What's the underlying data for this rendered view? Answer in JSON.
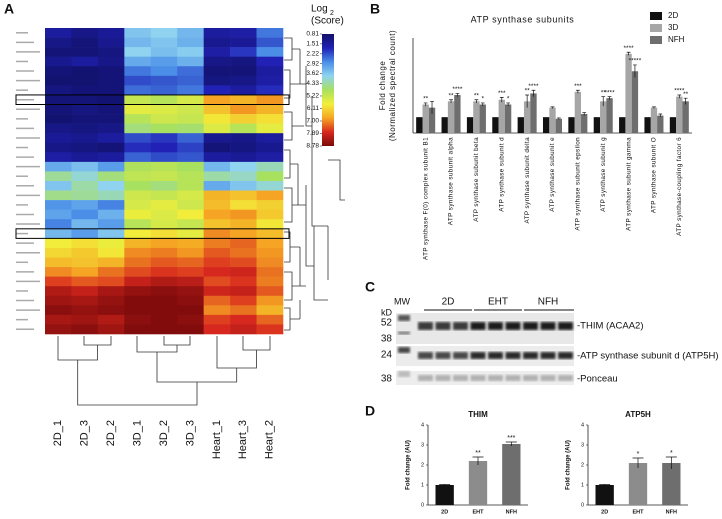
{
  "panels": [
    "A",
    "B",
    "C",
    "D"
  ],
  "blot": {
    "mw": "MW",
    "kd": "kD",
    "groups": [
      "2D",
      "EHT",
      "NFH"
    ],
    "markers": [
      "52",
      "38",
      "24",
      "38"
    ],
    "rows": [
      "-THIM (ACAA2)",
      "-ATP synthase subunit d (ATP5H)",
      "-Ponceau"
    ]
  },
  "chart_data": [
    {
      "type": "heatmap",
      "x": [
        "2D_1",
        "2D_3",
        "2D_2",
        "3D_1",
        "3D_2",
        "3D_3",
        "Heart_1",
        "Heart_3",
        "Heart_2"
      ],
      "legend_title": [
        "Log",
        "2",
        "(Score)"
      ],
      "clim": [
        0.81,
        8.78
      ],
      "colors": [
        "#11116a",
        "#2121b5",
        "#4a8ee8",
        "#8fd3f0",
        "#a8e060",
        "#f2ee3a",
        "#f5a623",
        "#d8281e",
        "#7a0a0a"
      ],
      "colorbar_ticks": [
        0.81,
        1.51,
        2.22,
        2.92,
        3.62,
        4.33,
        5.22,
        6.11,
        {
          "value": 7,
          "label": "7.00"
        },
        7.89,
        8.78
      ],
      "values": [
        [
          1.5,
          1.2,
          1.4,
          3.6,
          3.8,
          3.4,
          1.5,
          1.6,
          2.6
        ],
        [
          1.2,
          1.0,
          1.3,
          3.4,
          3.6,
          3.3,
          1.3,
          1.4,
          2.3
        ],
        [
          1.0,
          1.0,
          1.1,
          3.8,
          3.5,
          3.7,
          1.6,
          2.0,
          2.8
        ],
        [
          1.3,
          1.5,
          1.2,
          3.2,
          3.0,
          3.3,
          1.2,
          1.1,
          1.8
        ],
        [
          1.0,
          0.9,
          1.0,
          2.6,
          2.8,
          2.5,
          1.0,
          1.0,
          1.5
        ],
        [
          0.9,
          0.9,
          1.0,
          2.2,
          2.3,
          2.4,
          1.1,
          1.2,
          1.6
        ],
        [
          1.1,
          1.0,
          1.0,
          2.5,
          2.4,
          2.6,
          1.8,
          1.5,
          1.9
        ],
        [
          1.0,
          1.0,
          0.9,
          5.2,
          5.0,
          5.4,
          6.8,
          6.6,
          6.9
        ],
        [
          1.0,
          1.1,
          1.0,
          5.6,
          5.5,
          5.3,
          6.4,
          6.9,
          6.6
        ],
        [
          0.9,
          1.0,
          1.0,
          5.0,
          5.3,
          5.2,
          5.9,
          6.2,
          6.0
        ],
        [
          1.2,
          1.1,
          1.2,
          4.6,
          4.8,
          4.7,
          5.5,
          5.0,
          5.6
        ],
        [
          1.4,
          1.3,
          1.5,
          2.2,
          2.0,
          2.4,
          1.3,
          1.2,
          1.5
        ],
        [
          1.2,
          1.1,
          1.0,
          1.9,
          1.8,
          2.1,
          1.0,
          1.1,
          1.3
        ],
        [
          1.6,
          1.4,
          1.5,
          2.4,
          2.2,
          2.3,
          1.5,
          1.4,
          1.6
        ],
        [
          3.2,
          3.5,
          3.0,
          4.9,
          5.0,
          4.8,
          3.4,
          3.8,
          4.2
        ],
        [
          4.4,
          4.0,
          4.6,
          5.1,
          5.2,
          5.0,
          4.3,
          4.1,
          4.8
        ],
        [
          3.6,
          4.3,
          3.8,
          4.8,
          4.6,
          5.0,
          3.2,
          3.6,
          4.0
        ],
        [
          4.5,
          4.4,
          4.2,
          5.3,
          5.2,
          5.4,
          6.6,
          6.4,
          6.8
        ],
        [
          2.9,
          3.1,
          2.7,
          5.4,
          5.6,
          5.3,
          6.5,
          6.0,
          6.2
        ],
        [
          3.1,
          2.8,
          3.3,
          5.7,
          5.5,
          5.8,
          6.8,
          6.9,
          6.3
        ],
        [
          2.7,
          3.4,
          3.0,
          5.0,
          5.4,
          5.2,
          6.4,
          6.6,
          5.9
        ],
        [
          3.4,
          3.0,
          3.6,
          5.8,
          6.0,
          5.6,
          7.0,
          6.8,
          6.5
        ],
        [
          5.8,
          6.0,
          5.7,
          6.6,
          6.8,
          6.7,
          7.1,
          7.3,
          6.8
        ],
        [
          6.1,
          6.3,
          5.9,
          7.0,
          7.1,
          6.9,
          7.4,
          7.2,
          6.9
        ],
        [
          6.5,
          6.4,
          6.6,
          7.2,
          7.4,
          7.3,
          7.6,
          7.5,
          7.0
        ],
        [
          7.0,
          6.8,
          7.2,
          7.5,
          7.7,
          7.6,
          7.8,
          7.9,
          7.2
        ],
        [
          7.6,
          7.4,
          7.5,
          8.0,
          8.2,
          8.1,
          7.5,
          7.7,
          7.1
        ],
        [
          8.2,
          8.0,
          8.3,
          8.5,
          8.6,
          8.5,
          7.9,
          8.0,
          7.4
        ],
        [
          8.4,
          8.3,
          8.5,
          8.7,
          8.7,
          8.6,
          7.3,
          7.6,
          6.9
        ],
        [
          8.6,
          8.5,
          8.6,
          8.7,
          8.7,
          8.7,
          7.0,
          7.2,
          6.6
        ],
        [
          8.3,
          8.4,
          8.2,
          8.6,
          8.7,
          8.6,
          7.6,
          7.8,
          7.3
        ],
        [
          8.5,
          8.6,
          8.4,
          8.7,
          8.7,
          8.7,
          7.8,
          8.0,
          7.7
        ]
      ]
    },
    {
      "type": "bar",
      "title": "ATP synthase subunits",
      "ylabel": [
        "Fold change",
        "(Normalized spectral count)"
      ],
      "ylim": [
        0,
        6
      ],
      "legend": "upper right",
      "categories": [
        "ATP synthase F(0) complex subunit B1",
        "ATP synthase subunit alpha",
        "ATP synthase subunit beta",
        "ATP synthase subunit d",
        "ATP synthase subunit delta",
        "ATP synthase subunit e",
        "ATP synthase subunit epsilon",
        "ATP synthase subunit g",
        "ATP synthase subunit gamma",
        "ATP synthase subunit O",
        "ATP synthase-coupling factor 6"
      ],
      "series": [
        {
          "name": "2D",
          "color": "#111111",
          "values": [
            1,
            1,
            1,
            1,
            1,
            1,
            1,
            1,
            1,
            1,
            1
          ],
          "errors": [
            0,
            0,
            0,
            0,
            0,
            0,
            0,
            0,
            0,
            0,
            0
          ],
          "annotations": [
            null,
            null,
            null,
            null,
            null,
            null,
            null,
            null,
            null,
            null,
            null
          ]
        },
        {
          "name": "3D",
          "color": "#a6a6a6",
          "values": [
            1.8,
            2.0,
            2.0,
            2.1,
            2.0,
            1.6,
            2.6,
            2.0,
            5.0,
            1.6,
            2.3
          ],
          "errors": [
            0.1,
            0.1,
            0.1,
            0.15,
            0.4,
            0.05,
            0.1,
            0.3,
            0.1,
            0.05,
            0.1
          ],
          "annotations": [
            "**",
            "**",
            "**",
            "***",
            "**",
            null,
            "***",
            "**",
            "****",
            null,
            "****"
          ]
        },
        {
          "name": "NFH",
          "color": "#6e6e6e",
          "values": [
            1.6,
            2.4,
            1.8,
            1.8,
            2.5,
            0.9,
            1.2,
            2.2,
            3.9,
            1.1,
            2.0
          ],
          "errors": [
            0.4,
            0.1,
            0.1,
            0.1,
            0.2,
            0.05,
            0.1,
            0.1,
            0.4,
            0.1,
            0.2
          ],
          "annotations": [
            null,
            "****",
            "*",
            "*",
            "****",
            null,
            null,
            "****",
            "*****",
            null,
            "**"
          ]
        }
      ]
    },
    {
      "type": "bar",
      "title": "THIM",
      "ylabel": [
        "Fold change (AU)"
      ],
      "ylim": [
        0,
        4
      ],
      "yticks": [
        0,
        1,
        2,
        3,
        4
      ],
      "categories": [
        "2D",
        "EHT",
        "NFH"
      ],
      "colors": [
        "#111111",
        "#8c8c8c",
        "#6e6e6e"
      ],
      "values": [
        1.0,
        2.2,
        3.05
      ],
      "errors": [
        0.03,
        0.2,
        0.1
      ],
      "annotations": [
        null,
        "**",
        "***"
      ]
    },
    {
      "type": "bar",
      "title": "ATP5H",
      "ylabel": [
        "Fold change (AU)"
      ],
      "ylim": [
        0,
        4
      ],
      "yticks": [
        0,
        1,
        2,
        3,
        4
      ],
      "categories": [
        "2D",
        "EHT",
        "NFH"
      ],
      "colors": [
        "#111111",
        "#8c8c8c",
        "#6e6e6e"
      ],
      "values": [
        1.0,
        2.1,
        2.1
      ],
      "errors": [
        0.03,
        0.25,
        0.3
      ],
      "annotations": [
        null,
        "*",
        "*"
      ]
    }
  ]
}
